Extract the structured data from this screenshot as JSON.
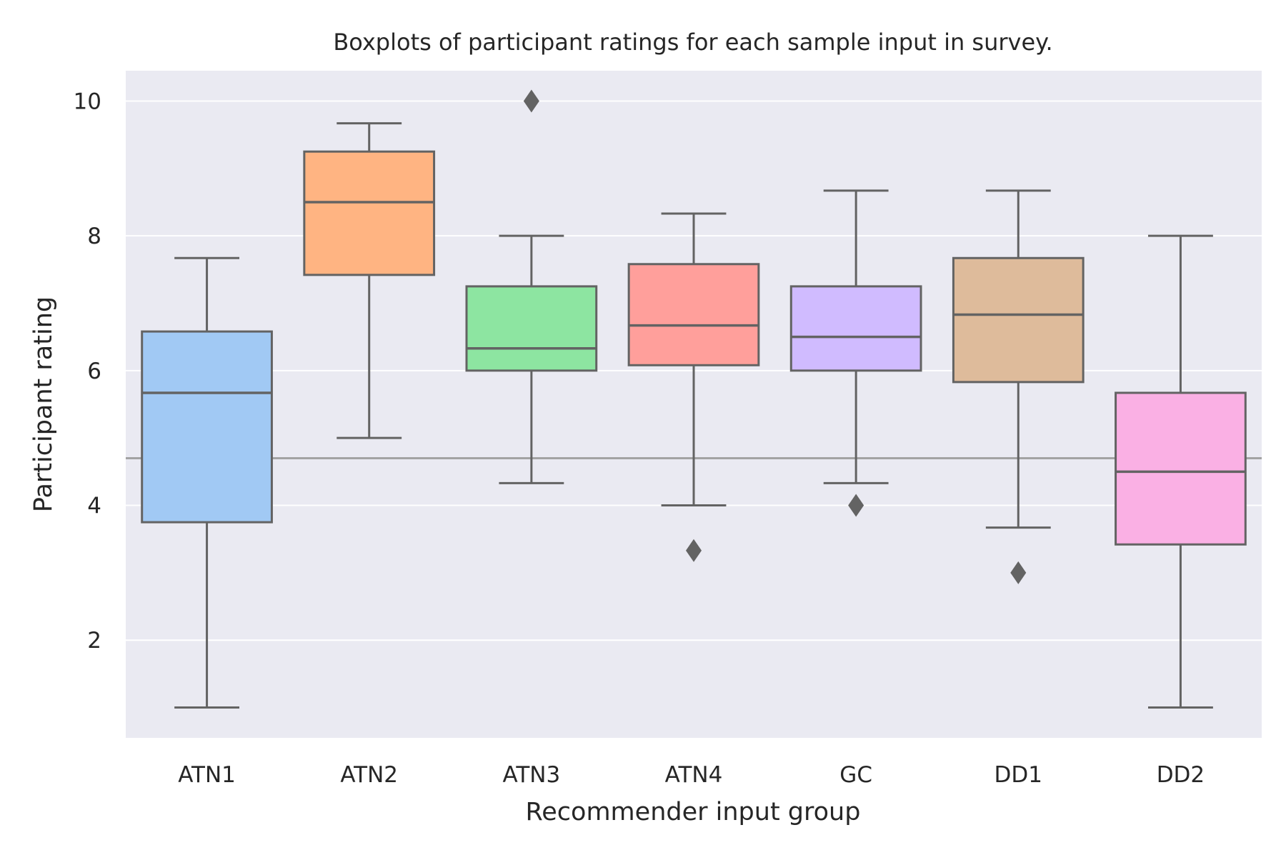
{
  "chart_data": {
    "type": "box",
    "title": "Boxplots of participant ratings for each sample input in survey.",
    "xlabel": "Recommender input group",
    "ylabel": "Participant rating",
    "ylim": [
      0.55,
      10.45
    ],
    "yticks": [
      2,
      4,
      6,
      8,
      10
    ],
    "ytick_labels": [
      "2",
      "4",
      "6",
      "8",
      "10"
    ],
    "categories": [
      "ATN1",
      "ATN2",
      "ATN3",
      "ATN4",
      "GC",
      "DD1",
      "DD2"
    ],
    "reference_line": 4.7,
    "grid": true,
    "colors": {
      "background": "#eaeaf2",
      "grid": "#ffffff",
      "box_edge": "#636363",
      "reference_line": "#a3a3a3",
      "boxes": [
        "#a1c9f4",
        "#ffb482",
        "#8de5a1",
        "#ff9f9b",
        "#d0bbff",
        "#debb9b",
        "#fab0e4"
      ]
    },
    "series": [
      {
        "category": "ATN1",
        "whisker_low": 1.0,
        "q1": 3.75,
        "median": 5.67,
        "q3": 6.58,
        "whisker_high": 7.67,
        "outliers": []
      },
      {
        "category": "ATN2",
        "whisker_low": 5.0,
        "q1": 7.42,
        "median": 8.5,
        "q3": 9.25,
        "whisker_high": 9.67,
        "outliers": []
      },
      {
        "category": "ATN3",
        "whisker_low": 4.33,
        "q1": 6.0,
        "median": 6.33,
        "q3": 7.25,
        "whisker_high": 8.0,
        "outliers": [
          10.0
        ]
      },
      {
        "category": "ATN4",
        "whisker_low": 4.0,
        "q1": 6.08,
        "median": 6.67,
        "q3": 7.58,
        "whisker_high": 8.33,
        "outliers": [
          3.33
        ]
      },
      {
        "category": "GC",
        "whisker_low": 4.33,
        "q1": 6.0,
        "median": 6.5,
        "q3": 7.25,
        "whisker_high": 8.67,
        "outliers": [
          4.0
        ]
      },
      {
        "category": "DD1",
        "whisker_low": 3.67,
        "q1": 5.83,
        "median": 6.83,
        "q3": 7.67,
        "whisker_high": 8.67,
        "outliers": [
          3.0
        ]
      },
      {
        "category": "DD2",
        "whisker_low": 1.0,
        "q1": 3.42,
        "median": 4.5,
        "q3": 5.67,
        "whisker_high": 8.0,
        "outliers": []
      }
    ]
  }
}
